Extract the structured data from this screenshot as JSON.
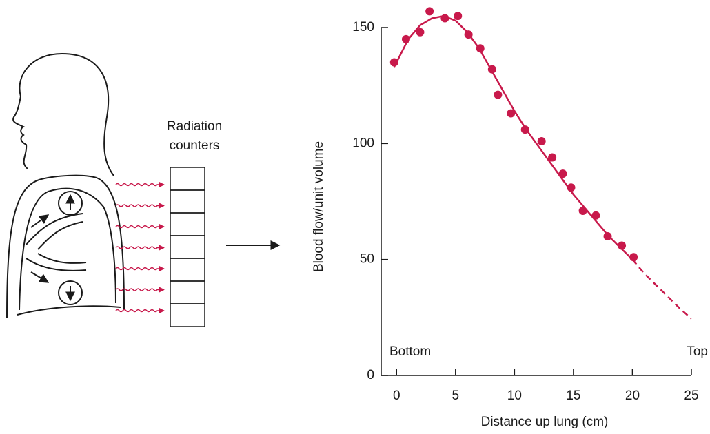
{
  "diagram": {
    "label": [
      "Radiation",
      "counters"
    ]
  },
  "chart_data": {
    "type": "scatter",
    "y_label": "Blood flow/unit volume",
    "x_label": "Distance up lung (cm)",
    "annotations": [
      "Bottom",
      "Top"
    ],
    "xlim": [
      -1.3,
      25
    ],
    "xticks": [
      0,
      5,
      10,
      15,
      20,
      25
    ],
    "ylim": [
      0,
      150
    ],
    "yticks": [
      0,
      50,
      100,
      150
    ],
    "series": [
      {
        "type": "scatter",
        "color": "#c8194b",
        "x": [
          -0.2,
          0.8,
          2.0,
          2.8,
          4.1,
          5.2,
          6.1,
          7.1,
          8.1,
          8.6,
          9.7,
          10.9,
          12.3,
          13.2,
          14.1,
          14.8,
          15.8,
          16.9,
          17.9,
          19.1,
          20.1
        ],
        "values": [
          135,
          145,
          148,
          157,
          154,
          155,
          147,
          141,
          132,
          121,
          113,
          106,
          101,
          94,
          87,
          81,
          71,
          69,
          60,
          56,
          51
        ]
      },
      {
        "type": "line",
        "color": "#c8194b",
        "dashed": false,
        "x": [
          -0.2,
          0,
          1,
          2,
          3,
          4,
          5,
          6,
          7,
          8,
          9,
          10,
          11,
          12,
          13,
          14,
          15,
          16,
          17,
          18,
          19,
          20
        ],
        "values": [
          133,
          135,
          145,
          151,
          154,
          155,
          153,
          148,
          141,
          132,
          123,
          114,
          106,
          99,
          92,
          85,
          78,
          72,
          66,
          60,
          55,
          50
        ]
      },
      {
        "type": "line",
        "color": "#c8194b",
        "dashed": true,
        "x": [
          20,
          21,
          22,
          23,
          24,
          25
        ],
        "values": [
          50,
          44,
          39,
          34,
          29,
          24.5
        ]
      }
    ]
  }
}
